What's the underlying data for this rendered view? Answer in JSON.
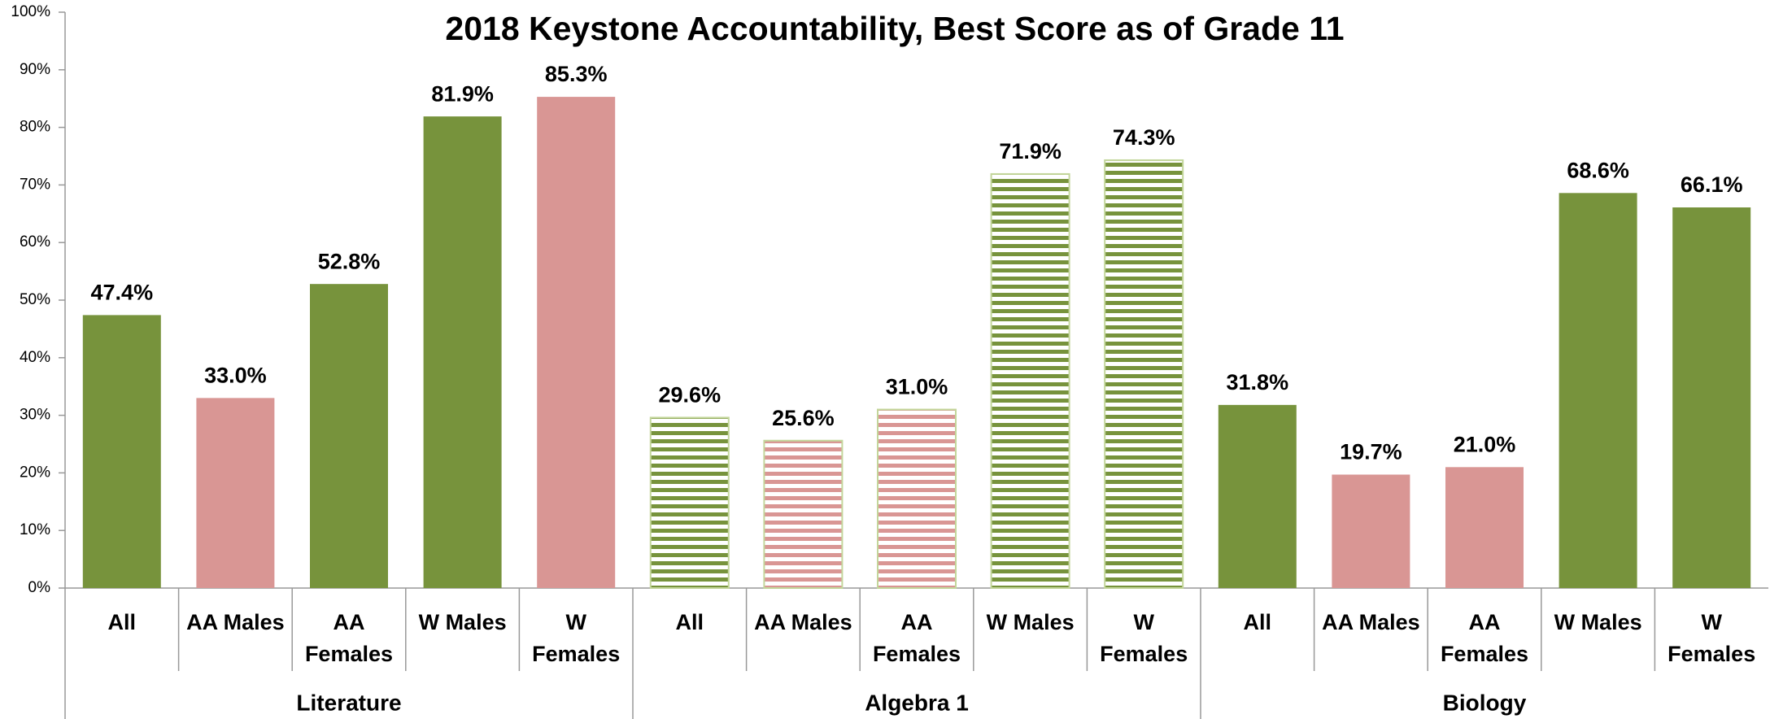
{
  "chart_data": {
    "type": "bar",
    "title": "2018 Keystone Accountability, Best Score as of Grade 11",
    "groups": [
      "Literature",
      "Algebra 1",
      "Biology"
    ],
    "categories": [
      "All",
      "AA Males",
      "AA Females",
      "W Males",
      "W Females",
      "All",
      "AA Males",
      "AA Females",
      "W Males",
      "W Females",
      "All",
      "AA Males",
      "AA Females",
      "W Males",
      "W Females"
    ],
    "values": [
      47.4,
      33.0,
      52.8,
      81.9,
      85.3,
      29.6,
      25.6,
      31.0,
      71.9,
      74.3,
      31.8,
      19.7,
      21.0,
      68.6,
      66.1
    ],
    "value_labels": [
      "47.4%",
      "33.0%",
      "52.8%",
      "81.9%",
      "85.3%",
      "29.6%",
      "25.6%",
      "31.0%",
      "71.9%",
      "74.3%",
      "31.8%",
      "19.7%",
      "21.0%",
      "68.6%",
      "66.1%"
    ],
    "colors": [
      "#77933c",
      "#d99694",
      "#77933c",
      "#77933c",
      "#d99694",
      "#77933c",
      "#d99694",
      "#d99694",
      "#77933c",
      "#77933c",
      "#77933c",
      "#d99694",
      "#d99694",
      "#77933c",
      "#77933c"
    ],
    "hatched": [
      false,
      false,
      false,
      false,
      false,
      true,
      true,
      true,
      true,
      true,
      false,
      false,
      false,
      false,
      false
    ],
    "ylim": [
      0,
      100
    ],
    "yticks": [
      {
        "value": 0,
        "label": "0%"
      },
      {
        "value": 10,
        "label": "10%"
      },
      {
        "value": 20,
        "label": "20%"
      },
      {
        "value": 30,
        "label": "30%"
      },
      {
        "value": 40,
        "label": "40%"
      },
      {
        "value": 50,
        "label": "50%"
      },
      {
        "value": 60,
        "label": "60%"
      },
      {
        "value": 70,
        "label": "70%"
      },
      {
        "value": 80,
        "label": "80%"
      },
      {
        "value": 90,
        "label": "90%"
      },
      {
        "value": 100,
        "label": "100%"
      }
    ],
    "grid": false
  }
}
